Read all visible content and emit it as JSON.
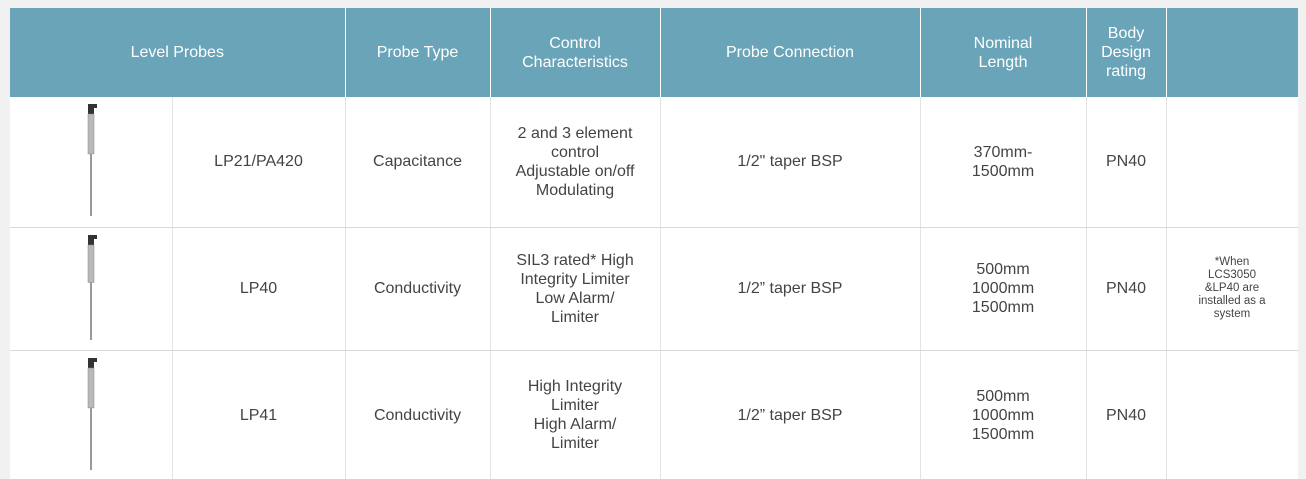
{
  "table": {
    "header": [
      [
        "Level Probes"
      ],
      [
        "Probe Type"
      ],
      [
        "Control",
        "Characteristics"
      ],
      [
        "Probe Connection"
      ],
      [
        "Nominal",
        "Length"
      ],
      [
        "Body",
        "Design",
        "rating"
      ],
      []
    ],
    "rows": [
      {
        "model": "LP21/PA420",
        "type": "Capacitance",
        "control": [
          "2 and 3 element",
          "control",
          "Adjustable on/off",
          "Modulating"
        ],
        "connection": "1/2\" taper BSP",
        "length": [
          "370mm-",
          "1500mm"
        ],
        "rating": "PN40"
      },
      {
        "model": "LP40",
        "type": "Conductivity",
        "control": [
          "SIL3 rated* High",
          "Integrity Limiter",
          "Low Alarm/",
          "Limiter"
        ],
        "connection": "1/2” taper BSP",
        "length": [
          "500mm",
          "1000mm",
          "1500mm"
        ],
        "rating": "PN40",
        "note": [
          "*When",
          "LCS3050",
          "&LP40 are",
          "installed as a",
          "system"
        ]
      },
      {
        "model": "LP41",
        "type": "Conductivity",
        "control": [
          "High Integrity",
          "Limiter",
          "High Alarm/",
          "Limiter"
        ],
        "connection": "1/2” taper BSP",
        "length": [
          "500mm",
          "1000mm",
          "1500mm"
        ],
        "rating": "PN40"
      }
    ]
  }
}
